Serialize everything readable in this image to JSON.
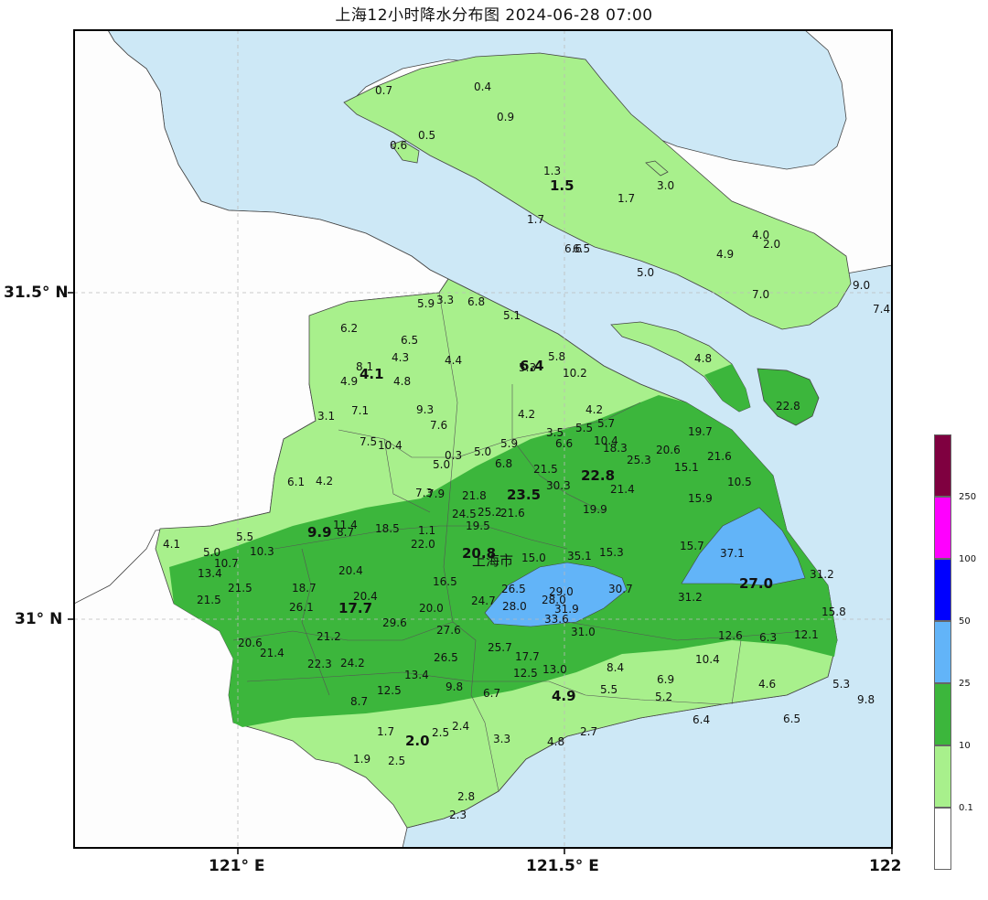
{
  "title": "上海12小时降水分布图 2024-06-28 07:00",
  "axes": {
    "lat_top": "31.5° N",
    "lat_bottom": "31° N",
    "lon_left": "121° E",
    "lon_mid": "121.5° E",
    "lon_right": "122"
  },
  "city_label": "上海市",
  "colors": {
    "sea": "#cde8f6",
    "land_outside": "#fdfdfd",
    "c01": "#a8f08c",
    "c10": "#3cb63c",
    "c25": "#62b4f8",
    "c50": "#0000fe",
    "c100": "#fe00fe",
    "c250": "#7f0040",
    "c0": "#ffffff"
  },
  "legend": {
    "labels": [
      "250",
      "100",
      "50",
      "25",
      "10",
      "0.1"
    ]
  },
  "stations": [
    {
      "v": "0.7"
    },
    {
      "v": "0.4"
    },
    {
      "v": "0.9"
    },
    {
      "v": "0.5"
    },
    {
      "v": "0.6"
    },
    {
      "v": "1.3"
    },
    {
      "v": "1.5",
      "b": true
    },
    {
      "v": "3.0"
    },
    {
      "v": "1.7"
    },
    {
      "v": "1.7"
    },
    {
      "v": "6.6"
    },
    {
      "v": "6.5"
    },
    {
      "v": "4.0"
    },
    {
      "v": "2.0"
    },
    {
      "v": "4.9"
    },
    {
      "v": "5.0"
    },
    {
      "v": "9.0"
    },
    {
      "v": "7.0"
    },
    {
      "v": "7.4"
    },
    {
      "v": "5.9"
    },
    {
      "v": "3.3"
    },
    {
      "v": "6.8"
    },
    {
      "v": "5.1"
    },
    {
      "v": "6.2"
    },
    {
      "v": "6.5"
    },
    {
      "v": "4.3"
    },
    {
      "v": "4.4"
    },
    {
      "v": "8.1"
    },
    {
      "v": "4.1",
      "b": true
    },
    {
      "v": "4.9"
    },
    {
      "v": "4.8"
    },
    {
      "v": "5.3"
    },
    {
      "v": "6.4",
      "b": true
    },
    {
      "v": "5.8"
    },
    {
      "v": "10.2"
    },
    {
      "v": "4.8"
    },
    {
      "v": "7.1"
    },
    {
      "v": "9.3"
    },
    {
      "v": "3.1"
    },
    {
      "v": "7.6"
    },
    {
      "v": "4.2"
    },
    {
      "v": "4.2"
    },
    {
      "v": "22.8"
    },
    {
      "v": "5.5"
    },
    {
      "v": "5.7"
    },
    {
      "v": "3.5"
    },
    {
      "v": "19.7"
    },
    {
      "v": "7.5"
    },
    {
      "v": "10.4"
    },
    {
      "v": "5.9"
    },
    {
      "v": "6.6"
    },
    {
      "v": "10.4"
    },
    {
      "v": "18.3"
    },
    {
      "v": "20.6"
    },
    {
      "v": "5.0"
    },
    {
      "v": "0.3"
    },
    {
      "v": "5.0"
    },
    {
      "v": "25.3"
    },
    {
      "v": "21.6"
    },
    {
      "v": "6.8"
    },
    {
      "v": "21.5"
    },
    {
      "v": "15.1"
    },
    {
      "v": "6.1"
    },
    {
      "v": "4.2"
    },
    {
      "v": "22.8",
      "b": true
    },
    {
      "v": "10.5"
    },
    {
      "v": "30.3"
    },
    {
      "v": "21.4"
    },
    {
      "v": "7.3"
    },
    {
      "v": "7.9"
    },
    {
      "v": "21.8"
    },
    {
      "v": "23.5",
      "b": true
    },
    {
      "v": "15.9"
    },
    {
      "v": "24.5"
    },
    {
      "v": "25.2"
    },
    {
      "v": "21.6"
    },
    {
      "v": "19.9"
    },
    {
      "v": "11.4"
    },
    {
      "v": "19.5"
    },
    {
      "v": "5.5"
    },
    {
      "v": "9.9",
      "b": true
    },
    {
      "v": "8.7"
    },
    {
      "v": "18.5"
    },
    {
      "v": "1.1"
    },
    {
      "v": "4.1"
    },
    {
      "v": "22.0"
    },
    {
      "v": "15.7"
    },
    {
      "v": "5.0"
    },
    {
      "v": "10.3"
    },
    {
      "v": "20.8",
      "b": true
    },
    {
      "v": "37.1"
    },
    {
      "v": "10.7"
    },
    {
      "v": "15.0"
    },
    {
      "v": "35.1"
    },
    {
      "v": "15.3"
    },
    {
      "v": "13.4"
    },
    {
      "v": "20.4"
    },
    {
      "v": "31.2"
    },
    {
      "v": "16.5"
    },
    {
      "v": "27.0",
      "b": true
    },
    {
      "v": "21.5"
    },
    {
      "v": "18.7"
    },
    {
      "v": "26.5"
    },
    {
      "v": "29.0"
    },
    {
      "v": "30.7"
    },
    {
      "v": "20.4"
    },
    {
      "v": "28.0"
    },
    {
      "v": "31.2"
    },
    {
      "v": "21.5"
    },
    {
      "v": "24.7"
    },
    {
      "v": "26.1"
    },
    {
      "v": "17.7",
      "b": true
    },
    {
      "v": "20.0"
    },
    {
      "v": "28.0"
    },
    {
      "v": "31.9"
    },
    {
      "v": "15.8"
    },
    {
      "v": "33.6"
    },
    {
      "v": "29.6"
    },
    {
      "v": "27.6"
    },
    {
      "v": "31.0"
    },
    {
      "v": "21.2"
    },
    {
      "v": "12.6"
    },
    {
      "v": "6.3"
    },
    {
      "v": "12.1"
    },
    {
      "v": "20.6"
    },
    {
      "v": "25.7"
    },
    {
      "v": "21.4"
    },
    {
      "v": "26.5"
    },
    {
      "v": "17.7"
    },
    {
      "v": "10.4"
    },
    {
      "v": "22.3"
    },
    {
      "v": "24.2"
    },
    {
      "v": "12.5"
    },
    {
      "v": "13.0"
    },
    {
      "v": "8.4"
    },
    {
      "v": "13.4"
    },
    {
      "v": "6.9"
    },
    {
      "v": "4.6"
    },
    {
      "v": "5.3"
    },
    {
      "v": "12.5"
    },
    {
      "v": "9.8"
    },
    {
      "v": "6.7"
    },
    {
      "v": "4.9",
      "b": true
    },
    {
      "v": "5.5"
    },
    {
      "v": "5.2"
    },
    {
      "v": "8.7"
    },
    {
      "v": "9.8"
    },
    {
      "v": "6.4"
    },
    {
      "v": "6.5"
    },
    {
      "v": "1.7"
    },
    {
      "v": "2.5"
    },
    {
      "v": "2.4"
    },
    {
      "v": "2.7"
    },
    {
      "v": "2.0",
      "b": true
    },
    {
      "v": "3.3"
    },
    {
      "v": "4.8"
    },
    {
      "v": "1.9"
    },
    {
      "v": "2.5"
    },
    {
      "v": "2.8"
    },
    {
      "v": "2.3"
    }
  ]
}
